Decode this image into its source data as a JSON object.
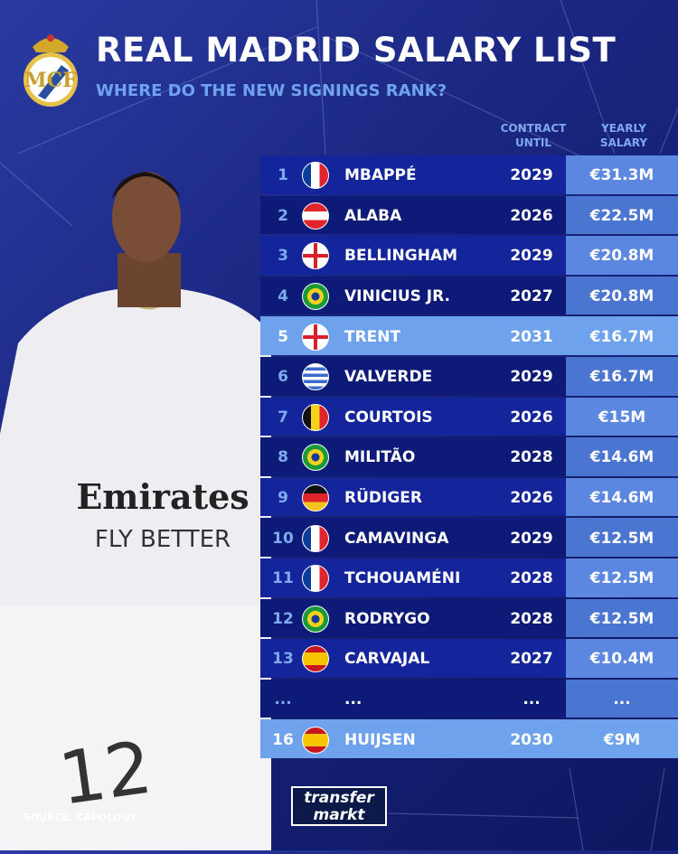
{
  "header": {
    "title": "REAL MADRID SALARY LIST",
    "subtitle": "WHERE DO THE NEW SIGNINGS RANK?"
  },
  "columns": {
    "contract": "CONTRACT UNTIL",
    "salary": "YEARLY SALARY"
  },
  "rows": [
    {
      "rank": "1",
      "flag": "france",
      "name": "MBAPPÉ",
      "until": "2029",
      "salary": "€31.3M"
    },
    {
      "rank": "2",
      "flag": "austria",
      "name": "ALABA",
      "until": "2026",
      "salary": "€22.5M"
    },
    {
      "rank": "3",
      "flag": "england",
      "name": "BELLINGHAM",
      "until": "2029",
      "salary": "€20.8M"
    },
    {
      "rank": "4",
      "flag": "brazil",
      "name": "VINICIUS JR.",
      "until": "2027",
      "salary": "€20.8M"
    },
    {
      "rank": "5",
      "flag": "england",
      "name": "TRENT",
      "until": "2031",
      "salary": "€16.7M",
      "highlight": true
    },
    {
      "rank": "6",
      "flag": "uruguay",
      "name": "VALVERDE",
      "until": "2029",
      "salary": "€16.7M"
    },
    {
      "rank": "7",
      "flag": "belgium",
      "name": "COURTOIS",
      "until": "2026",
      "salary": "€15M"
    },
    {
      "rank": "8",
      "flag": "brazil",
      "name": "MILITÃO",
      "until": "2028",
      "salary": "€14.6M"
    },
    {
      "rank": "9",
      "flag": "germany",
      "name": "RÜDIGER",
      "until": "2026",
      "salary": "€14.6M"
    },
    {
      "rank": "10",
      "flag": "france",
      "name": "CAMAVINGA",
      "until": "2029",
      "salary": "€12.5M"
    },
    {
      "rank": "11",
      "flag": "france",
      "name": "TCHOUAMÉNI",
      "until": "2028",
      "salary": "€12.5M"
    },
    {
      "rank": "12",
      "flag": "brazil",
      "name": "RODRYGO",
      "until": "2028",
      "salary": "€12.5M"
    },
    {
      "rank": "13",
      "flag": "spain",
      "name": "CARVAJAL",
      "until": "2027",
      "salary": "€10.4M"
    },
    {
      "rank": "...",
      "flag": "",
      "name": "...",
      "until": "...",
      "salary": "..."
    },
    {
      "rank": "16",
      "flag": "spain",
      "name": "HUIJSEN",
      "until": "2030",
      "salary": "€9M",
      "highlight": true
    }
  ],
  "footer": {
    "source": "SOURCE: CAPOLOGY",
    "logo": "transfer markt"
  },
  "shirt": {
    "sponsor": "Emirates",
    "tagline": "FLY BETTER",
    "number": "12"
  },
  "colors": {
    "highlight": "#6ea2ec",
    "row_dark": "#0e1a78",
    "salary_col": "#5b87e0",
    "subtitle": "#6fa3ee"
  }
}
